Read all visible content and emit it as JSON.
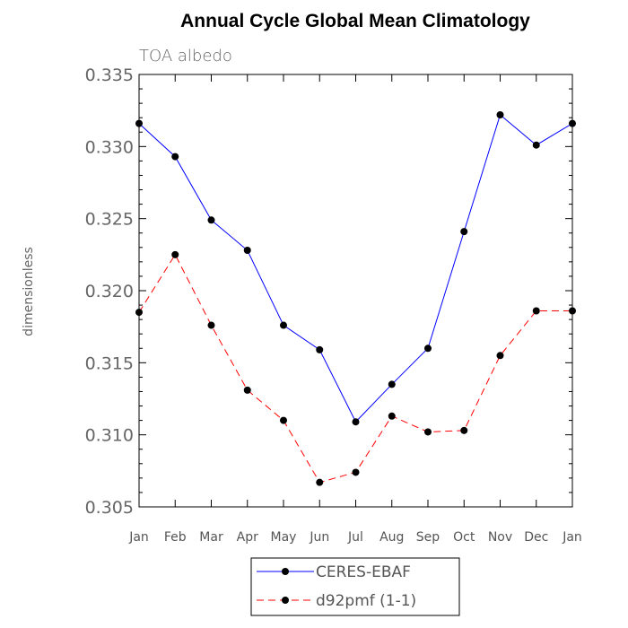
{
  "chart_data": {
    "type": "line",
    "title": "Annual Cycle Global Mean Climatology",
    "subtitle": "TOA albedo",
    "xlabel": "",
    "ylabel": "dimensionless",
    "categories": [
      "Jan",
      "Feb",
      "Mar",
      "Apr",
      "May",
      "Jun",
      "Jul",
      "Aug",
      "Sep",
      "Oct",
      "Nov",
      "Dec",
      "Jan"
    ],
    "ylim": [
      0.305,
      0.335
    ],
    "yticks": [
      "0.305",
      "0.310",
      "0.315",
      "0.320",
      "0.325",
      "0.330",
      "0.335"
    ],
    "grid": false,
    "legend_position": "bottom-center",
    "series": [
      {
        "name": "CERES-EBAF",
        "color": "#0000ff",
        "line_style": "solid",
        "marker": "filled-circle",
        "values": [
          0.3316,
          0.3293,
          0.3249,
          0.3228,
          0.3176,
          0.3159,
          0.3109,
          0.3135,
          0.316,
          0.3241,
          0.3322,
          0.3301,
          0.3316
        ]
      },
      {
        "name": "d92pmf (1-1)",
        "color": "#ff0000",
        "line_style": "dashed",
        "marker": "filled-circle",
        "values": [
          0.3185,
          0.3225,
          0.3176,
          0.3131,
          0.311,
          0.3067,
          0.3074,
          0.3113,
          0.3102,
          0.3103,
          0.3155,
          0.3186,
          0.3186
        ]
      }
    ]
  }
}
